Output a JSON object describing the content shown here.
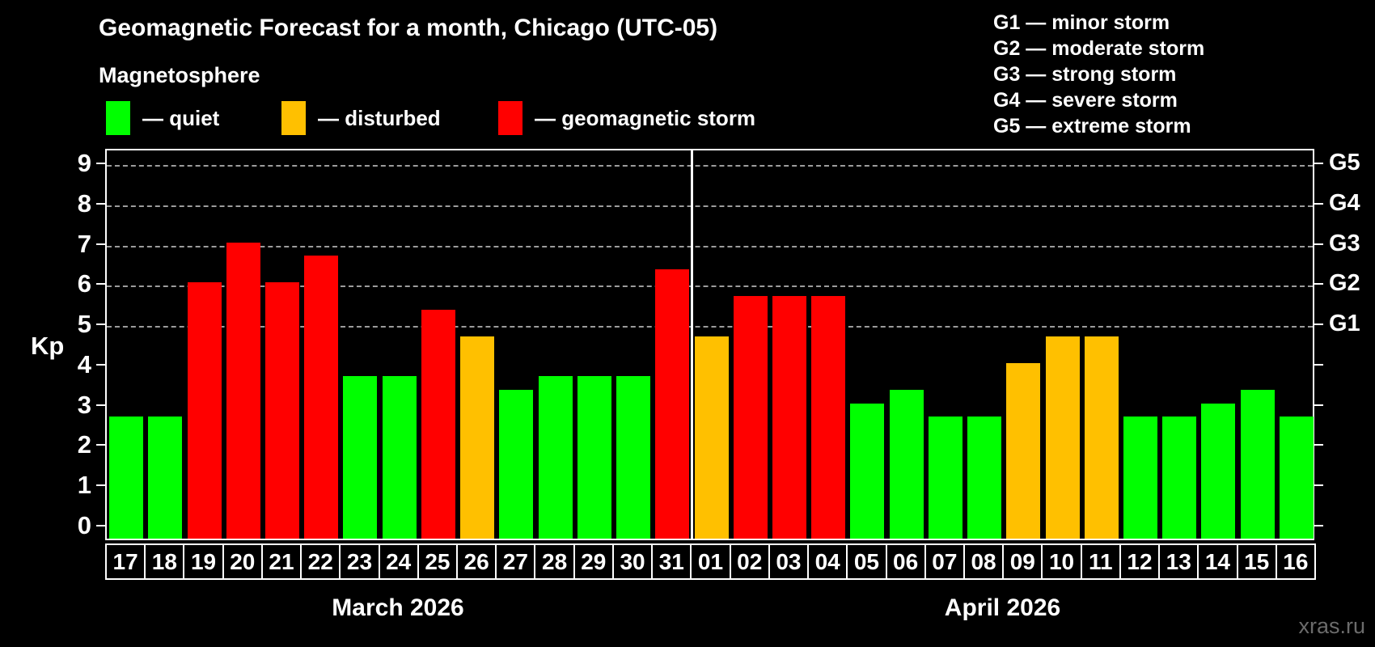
{
  "title": "Geomagnetic Forecast for a month, Chicago (UTC-05)",
  "subtitle": "Magnetosphere",
  "legend": {
    "items": [
      {
        "key": "quiet",
        "label": "— quiet",
        "color": "#00ff00"
      },
      {
        "key": "disturbed",
        "label": "— disturbed",
        "color": "#ffc000"
      },
      {
        "key": "storm",
        "label": "— geomagnetic storm",
        "color": "#ff0000"
      }
    ]
  },
  "g_legend": {
    "lines": [
      "G1 — minor storm",
      "G2 — moderate storm",
      "G3 — strong storm",
      "G4 — severe storm",
      "G5 — extreme storm"
    ]
  },
  "axes": {
    "kp_label": "Kp",
    "left_ticks": [
      0,
      1,
      2,
      3,
      4,
      5,
      6,
      7,
      8,
      9
    ],
    "right_ticks": [
      0,
      1,
      2,
      3,
      4,
      5,
      6,
      7,
      8,
      9
    ],
    "g_levels": [
      {
        "label": "G1",
        "value": 5
      },
      {
        "label": "G2",
        "value": 6
      },
      {
        "label": "G3",
        "value": 7
      },
      {
        "label": "G4",
        "value": 8
      },
      {
        "label": "G5",
        "value": 9
      }
    ],
    "gridline_values": [
      5,
      6,
      7,
      8,
      9
    ]
  },
  "colors": {
    "quiet": "#00ff00",
    "disturbed": "#ffc000",
    "storm": "#ff0000",
    "grid": "#9c9c9c",
    "text": "#ffffff",
    "background": "#000000",
    "watermark": "#6b6b6b"
  },
  "watermark": "xras.ru",
  "chart_data": {
    "type": "bar",
    "title": "Geomagnetic Forecast for a month, Chicago (UTC-05)",
    "ylabel": "Kp",
    "ylim": [
      0,
      9.4
    ],
    "grid": "dashed horizontal lines at Kp 5,6,7,8,9 (G1–G5)",
    "legend_position": "top-left",
    "months": [
      {
        "label": "March 2026",
        "days": [
          {
            "day": "17",
            "kp": 2.67,
            "status": "quiet"
          },
          {
            "day": "18",
            "kp": 2.67,
            "status": "quiet"
          },
          {
            "day": "19",
            "kp": 6.0,
            "status": "storm"
          },
          {
            "day": "20",
            "kp": 7.0,
            "status": "storm"
          },
          {
            "day": "21",
            "kp": 6.0,
            "status": "storm"
          },
          {
            "day": "22",
            "kp": 6.67,
            "status": "storm"
          },
          {
            "day": "23",
            "kp": 3.67,
            "status": "quiet"
          },
          {
            "day": "24",
            "kp": 3.67,
            "status": "quiet"
          },
          {
            "day": "25",
            "kp": 5.33,
            "status": "storm"
          },
          {
            "day": "26",
            "kp": 4.67,
            "status": "disturbed"
          },
          {
            "day": "27",
            "kp": 3.33,
            "status": "quiet"
          },
          {
            "day": "28",
            "kp": 3.67,
            "status": "quiet"
          },
          {
            "day": "29",
            "kp": 3.67,
            "status": "quiet"
          },
          {
            "day": "30",
            "kp": 3.67,
            "status": "quiet"
          },
          {
            "day": "31",
            "kp": 6.33,
            "status": "storm"
          }
        ]
      },
      {
        "label": "April 2026",
        "days": [
          {
            "day": "01",
            "kp": 4.67,
            "status": "disturbed"
          },
          {
            "day": "02",
            "kp": 5.67,
            "status": "storm"
          },
          {
            "day": "03",
            "kp": 5.67,
            "status": "storm"
          },
          {
            "day": "04",
            "kp": 5.67,
            "status": "storm"
          },
          {
            "day": "05",
            "kp": 3.0,
            "status": "quiet"
          },
          {
            "day": "06",
            "kp": 3.33,
            "status": "quiet"
          },
          {
            "day": "07",
            "kp": 2.67,
            "status": "quiet"
          },
          {
            "day": "08",
            "kp": 2.67,
            "status": "quiet"
          },
          {
            "day": "09",
            "kp": 4.0,
            "status": "disturbed"
          },
          {
            "day": "10",
            "kp": 4.67,
            "status": "disturbed"
          },
          {
            "day": "11",
            "kp": 4.67,
            "status": "disturbed"
          },
          {
            "day": "12",
            "kp": 2.67,
            "status": "quiet"
          },
          {
            "day": "13",
            "kp": 2.67,
            "status": "quiet"
          },
          {
            "day": "14",
            "kp": 3.0,
            "status": "quiet"
          },
          {
            "day": "15",
            "kp": 3.33,
            "status": "quiet"
          },
          {
            "day": "16",
            "kp": 2.67,
            "status": "quiet"
          }
        ]
      }
    ]
  }
}
